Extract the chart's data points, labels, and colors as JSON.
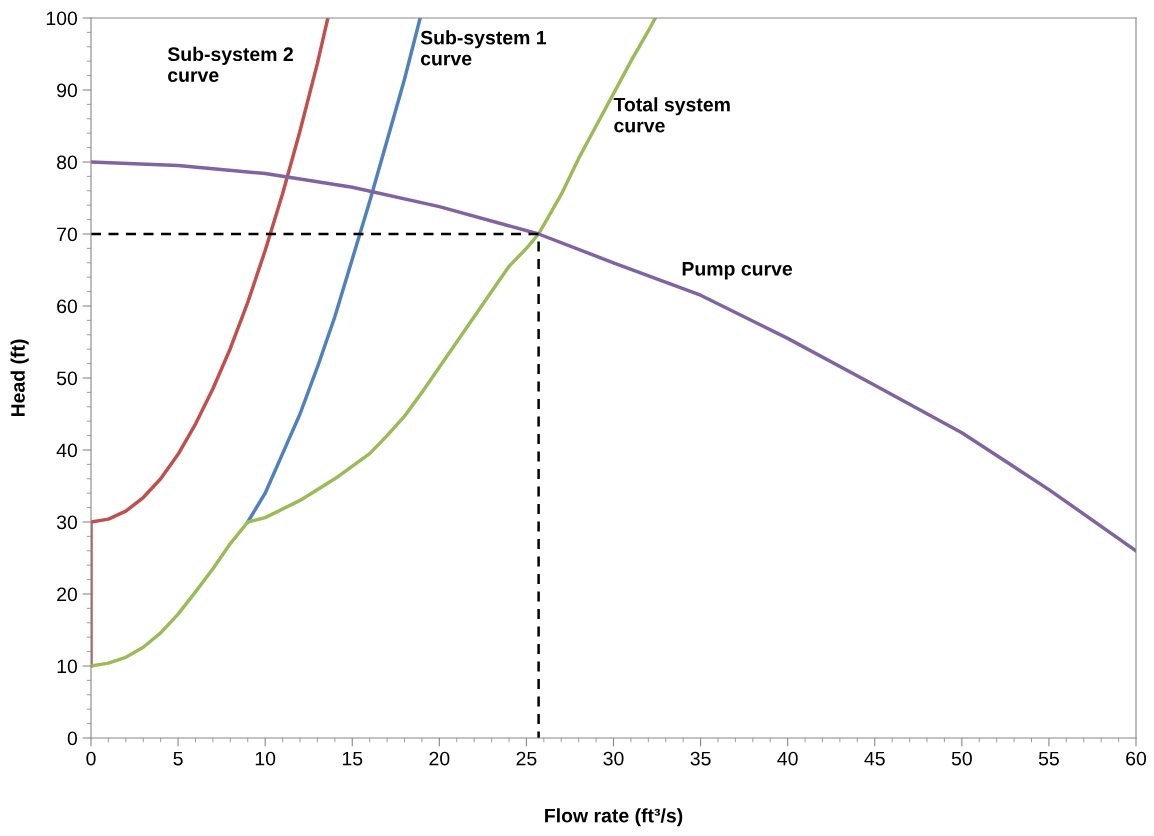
{
  "chart_data": {
    "type": "line",
    "xlabel": "Flow rate (ft³/s)",
    "ylabel": "Head (ft)",
    "xlim": [
      0,
      60
    ],
    "xticks": [
      0,
      5,
      10,
      15,
      20,
      25,
      30,
      35,
      40,
      45,
      50,
      55,
      60
    ],
    "ylim": [
      0,
      100
    ],
    "yticks": [
      0,
      10,
      20,
      30,
      40,
      50,
      60,
      70,
      80,
      90,
      100
    ],
    "grid": false,
    "marker": "none",
    "line_style": "solid",
    "series": [
      {
        "name": "Sub-system 2\ncurve",
        "color": "#c0504d",
        "x": [
          0,
          0,
          1,
          2,
          3,
          4,
          5,
          6,
          7,
          8,
          9,
          10,
          11,
          12,
          13,
          13.6
        ],
        "values": [
          10,
          30,
          30.4,
          31.5,
          33.4,
          36,
          39.4,
          43.6,
          48.5,
          54.1,
          60.5,
          67.7,
          75.6,
          84.3,
          93.7,
          100
        ]
      },
      {
        "name": "Sub-system 1\ncurve",
        "color": "#4f81bd",
        "x": [
          9,
          10,
          11,
          12,
          13,
          14,
          15,
          16,
          17,
          18,
          18.9
        ],
        "values": [
          30,
          34,
          39.5,
          45,
          51.5,
          58.5,
          66.5,
          74.5,
          83,
          91.5,
          100
        ]
      },
      {
        "name": "Total system\ncurve",
        "color": "#9bbb59",
        "x": [
          0,
          1,
          2,
          3,
          4,
          5,
          6,
          7,
          8,
          9,
          10,
          12,
          14,
          16,
          17,
          18,
          19,
          20,
          21,
          22,
          23,
          24,
          25,
          25.7,
          27,
          28,
          29,
          30,
          31,
          32,
          32.4
        ],
        "values": [
          10,
          10.4,
          11.2,
          12.6,
          14.6,
          17.2,
          20.3,
          23.5,
          27,
          30,
          30.6,
          33,
          36,
          39.5,
          42,
          44.7,
          48,
          51.5,
          55,
          58.5,
          62,
          65.5,
          68,
          70,
          75.5,
          80.5,
          85,
          89.5,
          94,
          98.2,
          100
        ]
      },
      {
        "name": "Pump curve",
        "color": "#8064a2",
        "x": [
          0,
          5,
          10,
          15,
          20,
          25.7,
          30,
          35,
          40,
          45,
          50,
          55,
          60
        ],
        "values": [
          80,
          79.5,
          78.4,
          76.5,
          73.8,
          70,
          66,
          61.5,
          55.5,
          49,
          42.4,
          34.5,
          26
        ]
      },
      {
        "color": "#000000",
        "line_style": "dashed",
        "x": [
          0,
          25.7,
          25.7
        ],
        "values": [
          70,
          70,
          0
        ]
      }
    ]
  }
}
